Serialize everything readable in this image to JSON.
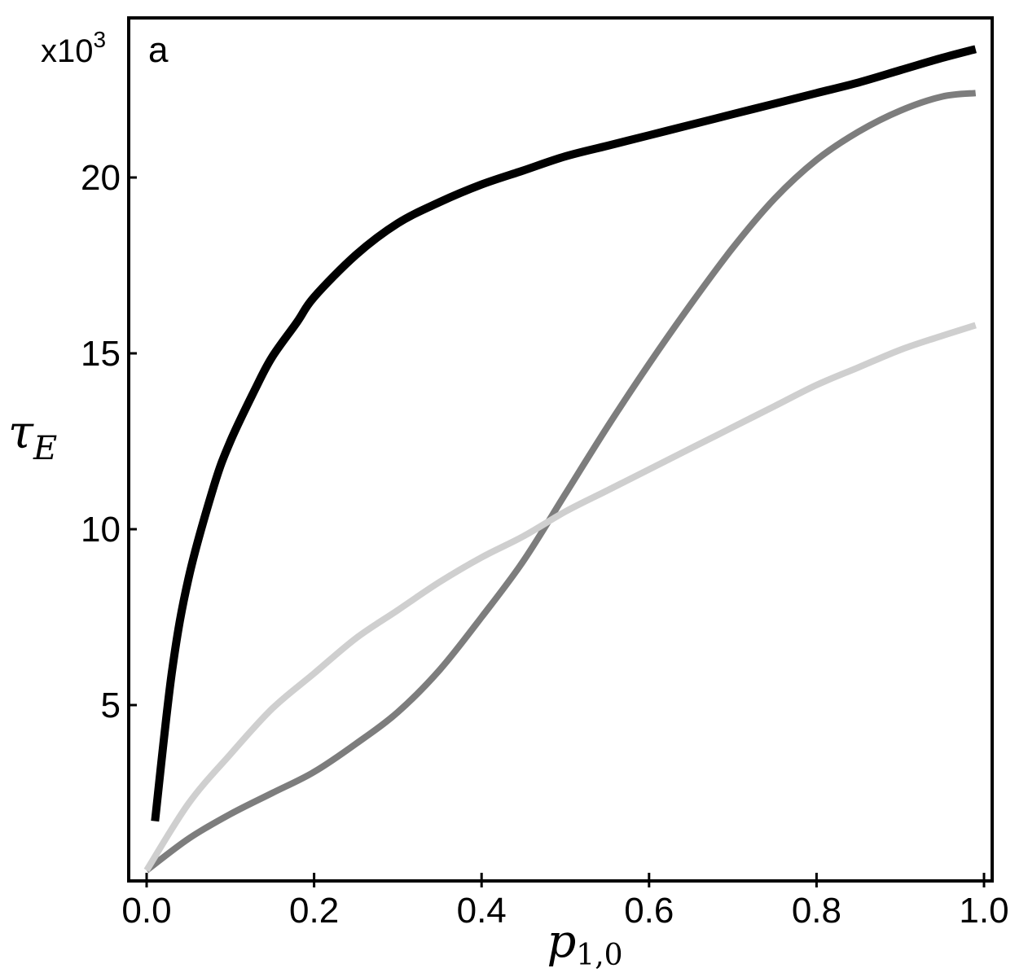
{
  "chart_data": {
    "type": "line",
    "panel_label": "a",
    "multiplier": {
      "base": "x10",
      "exponent": "3"
    },
    "xlabel": {
      "symbol": "p",
      "subscript": "1,0"
    },
    "ylabel": {
      "symbol": "τ",
      "subscript": "E"
    },
    "xlim": [
      0.0,
      1.0
    ],
    "ylim": [
      0.0,
      24.2
    ],
    "x_ticks": [
      {
        "value": 0.0,
        "label": "0.0"
      },
      {
        "value": 0.2,
        "label": "0.2"
      },
      {
        "value": 0.4,
        "label": "0.4"
      },
      {
        "value": 0.6,
        "label": "0.6"
      },
      {
        "value": 0.8,
        "label": "0.8"
      },
      {
        "value": 1.0,
        "label": "1.0"
      }
    ],
    "y_ticks": [
      {
        "value": 5,
        "label": "5"
      },
      {
        "value": 10,
        "label": "10"
      },
      {
        "value": 15,
        "label": "15"
      },
      {
        "value": 20,
        "label": "20"
      }
    ],
    "grid": false,
    "series": [
      {
        "color": "#000000",
        "x": [
          0.01,
          0.03,
          0.05,
          0.08,
          0.1,
          0.13,
          0.15,
          0.18,
          0.2,
          0.25,
          0.3,
          0.35,
          0.4,
          0.45,
          0.5,
          0.55,
          0.6,
          0.65,
          0.7,
          0.75,
          0.8,
          0.85,
          0.9,
          0.95,
          0.99
        ],
        "y": [
          1.7,
          5.9,
          8.6,
          11.2,
          12.5,
          14.0,
          14.9,
          15.9,
          16.6,
          17.8,
          18.7,
          19.3,
          19.8,
          20.2,
          20.6,
          20.9,
          21.2,
          21.5,
          21.8,
          22.1,
          22.4,
          22.7,
          23.05,
          23.4,
          23.65
        ]
      },
      {
        "color": "#7d7d7d",
        "x": [
          0.0,
          0.05,
          0.1,
          0.15,
          0.2,
          0.25,
          0.3,
          0.35,
          0.4,
          0.45,
          0.5,
          0.55,
          0.6,
          0.65,
          0.7,
          0.75,
          0.8,
          0.85,
          0.9,
          0.95,
          0.99
        ],
        "y": [
          0.3,
          1.2,
          1.9,
          2.5,
          3.1,
          3.9,
          4.8,
          6.0,
          7.5,
          9.1,
          11.0,
          12.9,
          14.7,
          16.4,
          18.0,
          19.4,
          20.5,
          21.3,
          21.9,
          22.3,
          22.4
        ]
      },
      {
        "color": "#cfcfcf",
        "x": [
          0.0,
          0.05,
          0.1,
          0.15,
          0.2,
          0.25,
          0.3,
          0.35,
          0.4,
          0.45,
          0.5,
          0.55,
          0.6,
          0.65,
          0.7,
          0.75,
          0.8,
          0.85,
          0.9,
          0.95,
          0.99
        ],
        "y": [
          0.3,
          2.2,
          3.6,
          4.9,
          5.9,
          6.9,
          7.7,
          8.5,
          9.2,
          9.8,
          10.5,
          11.1,
          11.7,
          12.3,
          12.9,
          13.5,
          14.1,
          14.6,
          15.1,
          15.5,
          15.8
        ]
      }
    ]
  }
}
